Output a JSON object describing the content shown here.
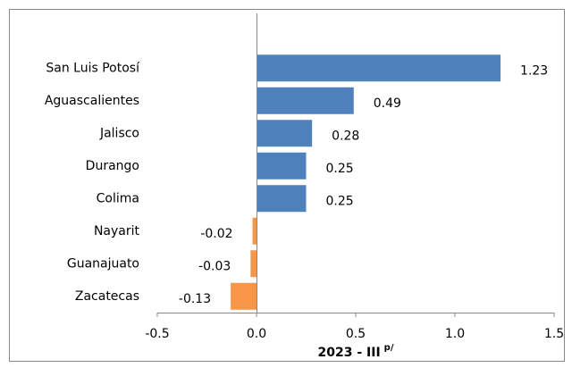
{
  "chart_data": {
    "type": "barh",
    "categories": [
      "San Luis Potosí",
      "Aguascalientes",
      "Jalisco",
      "Durango",
      "Colima",
      "Nayarit",
      "Guanajuato",
      "Zacatecas"
    ],
    "values": [
      1.23,
      0.49,
      0.28,
      0.25,
      0.25,
      -0.02,
      -0.03,
      -0.13
    ],
    "colors": [
      "#4f81bd",
      "#4f81bd",
      "#4f81bd",
      "#4f81bd",
      "#4f81bd",
      "#f79646",
      "#f79646",
      "#f79646"
    ],
    "xlim": [
      -0.5,
      1.5
    ],
    "xticks": [
      -0.5,
      {
        "value": 0,
        "label": "0.0"
      },
      0.5,
      {
        "value": 1,
        "label": "1.0"
      },
      1.5
    ],
    "x_label": "2023 - III",
    "x_label_superscript": "p/"
  }
}
